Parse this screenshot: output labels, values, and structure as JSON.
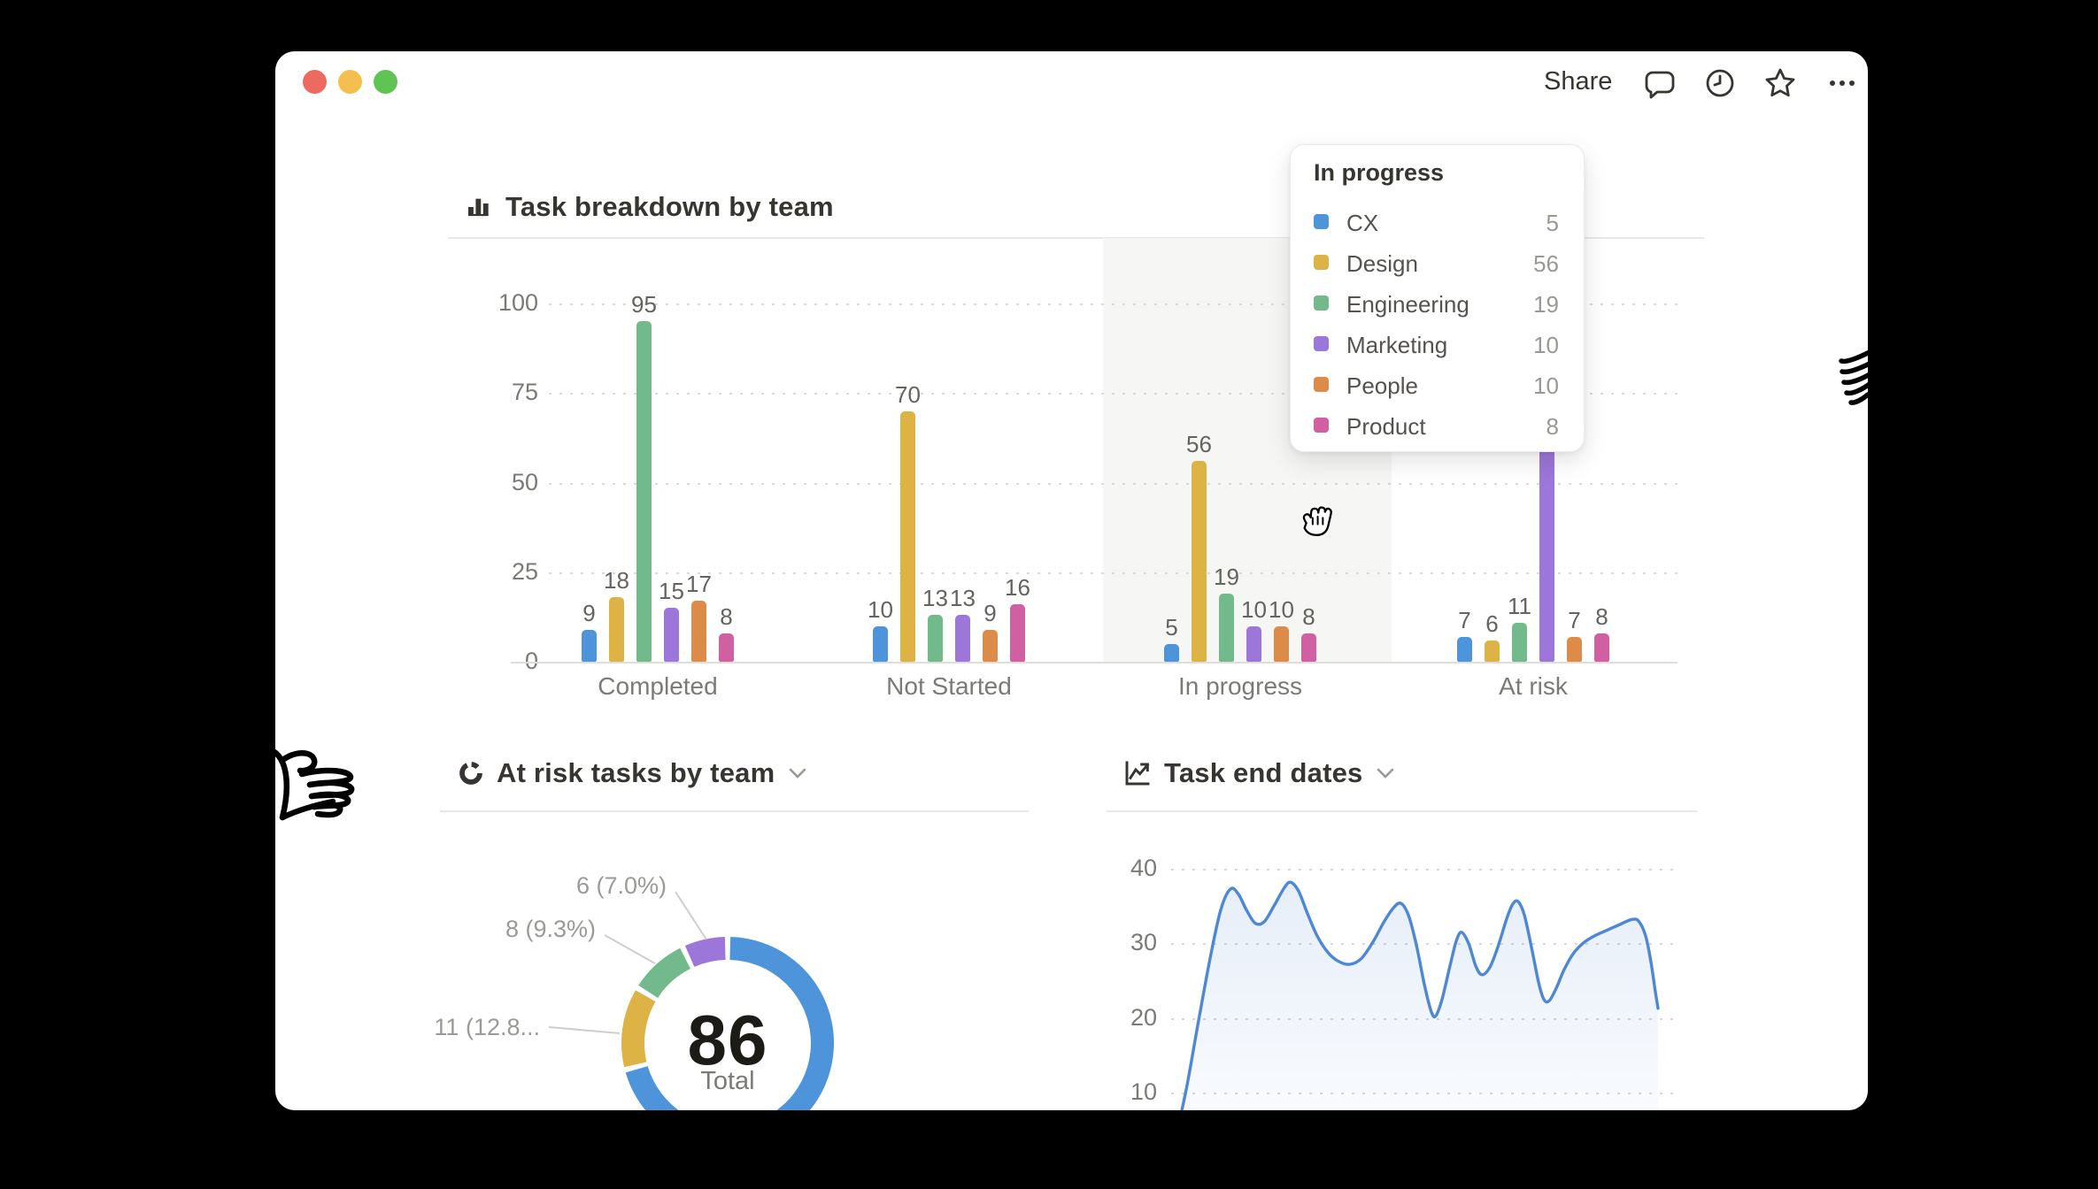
{
  "titlebar": {
    "share_label": "Share",
    "icons": [
      "comment-icon",
      "clock-icon",
      "star-icon",
      "more-icon"
    ]
  },
  "colors": {
    "traffic_red": "#EC6A5E",
    "traffic_yellow": "#F4BF4F",
    "traffic_green": "#5FC454",
    "line_blue": "#4E87D3",
    "hover_band": "#F6F6F4"
  },
  "chart_data": {
    "bar_chart": {
      "type": "bar",
      "title": "Task breakdown by team",
      "y_ticks": [
        100,
        75,
        50,
        25,
        0
      ],
      "ylim": [
        0,
        100
      ],
      "grid": "dotted-horizontal",
      "categories": [
        "Completed",
        "Not Started",
        "In progress",
        "At risk"
      ],
      "series": [
        {
          "name": "CX",
          "color": "#4D94DB",
          "values": [
            9,
            10,
            5,
            7
          ]
        },
        {
          "name": "Design",
          "color": "#DDB345",
          "values": [
            18,
            70,
            56,
            6
          ]
        },
        {
          "name": "Engineering",
          "color": "#72BA8C",
          "values": [
            95,
            13,
            19,
            11
          ]
        },
        {
          "name": "Marketing",
          "color": "#9C76D9",
          "values": [
            15,
            13,
            10,
            60
          ],
          "note_last_label_hidden_behind_tooltip": true
        },
        {
          "name": "People",
          "color": "#DD8B48",
          "values": [
            17,
            9,
            10,
            7
          ]
        },
        {
          "name": "Product",
          "color": "#D160A2",
          "values": [
            8,
            16,
            8,
            8
          ]
        }
      ],
      "hovered_category": "In progress"
    },
    "donut_chart": {
      "type": "pie",
      "title": "At risk tasks by team",
      "center_value": "86",
      "center_label": "Total",
      "slices_clockwise_from_top": [
        {
          "value": 61,
          "color": "#4D94DB",
          "label": ""
        },
        {
          "value": 11,
          "color": "#DDB345",
          "label": "11 (12.8..."
        },
        {
          "value": 8,
          "color": "#72BA8C",
          "label": "8 (9.3%)"
        },
        {
          "value": 6,
          "color": "#9C76D9",
          "label": "6 (7.0%)"
        }
      ],
      "visible_labels": [
        "6 (7.0%)",
        "8 (9.3%)",
        "11 (12.8..."
      ]
    },
    "line_chart": {
      "type": "area",
      "title": "Task end dates",
      "y_ticks": [
        40,
        30,
        20,
        10
      ],
      "grid": "dotted-horizontal",
      "points_x_value": [
        [
          1021,
          6
        ],
        [
          1030,
          11
        ],
        [
          1042,
          19
        ],
        [
          1056,
          28
        ],
        [
          1068,
          34.5
        ],
        [
          1079,
          37.3
        ],
        [
          1088,
          36.6
        ],
        [
          1097,
          34.5
        ],
        [
          1107,
          32.7
        ],
        [
          1117,
          32.9
        ],
        [
          1128,
          35
        ],
        [
          1140,
          37.5
        ],
        [
          1147,
          38.2
        ],
        [
          1156,
          37
        ],
        [
          1166,
          34
        ],
        [
          1177,
          31
        ],
        [
          1189,
          28.8
        ],
        [
          1201,
          27.6
        ],
        [
          1214,
          27.2
        ],
        [
          1227,
          28
        ],
        [
          1240,
          30.2
        ],
        [
          1252,
          32.8
        ],
        [
          1262,
          34.6
        ],
        [
          1271,
          35.4
        ],
        [
          1280,
          33.8
        ],
        [
          1289,
          29.8
        ],
        [
          1298,
          24.5
        ],
        [
          1306,
          20.8
        ],
        [
          1311,
          20.3
        ],
        [
          1318,
          22.5
        ],
        [
          1327,
          27
        ],
        [
          1334,
          30.3
        ],
        [
          1340,
          31.5
        ],
        [
          1348,
          30
        ],
        [
          1356,
          27
        ],
        [
          1363,
          25.8
        ],
        [
          1372,
          26.8
        ],
        [
          1381,
          29.5
        ],
        [
          1391,
          33.3
        ],
        [
          1398,
          35.3
        ],
        [
          1404,
          35.6
        ],
        [
          1411,
          33.8
        ],
        [
          1419,
          29.5
        ],
        [
          1427,
          24.8
        ],
        [
          1433,
          22.5
        ],
        [
          1439,
          22.3
        ],
        [
          1447,
          24
        ],
        [
          1456,
          26.5
        ],
        [
          1466,
          28.6
        ],
        [
          1477,
          30
        ],
        [
          1490,
          31
        ],
        [
          1505,
          31.8
        ],
        [
          1520,
          32.6
        ],
        [
          1532,
          33.2
        ],
        [
          1540,
          33
        ],
        [
          1548,
          31
        ],
        [
          1554,
          27.5
        ],
        [
          1559,
          23.5
        ],
        [
          1562,
          21.3
        ]
      ]
    }
  },
  "tooltip": {
    "title": "In progress",
    "rows": [
      {
        "team": "CX",
        "value": "5",
        "color": "#4D94DB"
      },
      {
        "team": "Design",
        "value": "56",
        "color": "#DDB345"
      },
      {
        "team": "Engineering",
        "value": "19",
        "color": "#72BA8C"
      },
      {
        "team": "Marketing",
        "value": "10",
        "color": "#9C76D9"
      },
      {
        "team": "People",
        "value": "10",
        "color": "#DD8B48"
      },
      {
        "team": "Product",
        "value": "8",
        "color": "#D160A2"
      }
    ]
  },
  "donut_labels": [
    {
      "text": "6 (7.0%)"
    },
    {
      "text": "8 (9.3%)"
    },
    {
      "text": "11 (12.8..."
    }
  ]
}
